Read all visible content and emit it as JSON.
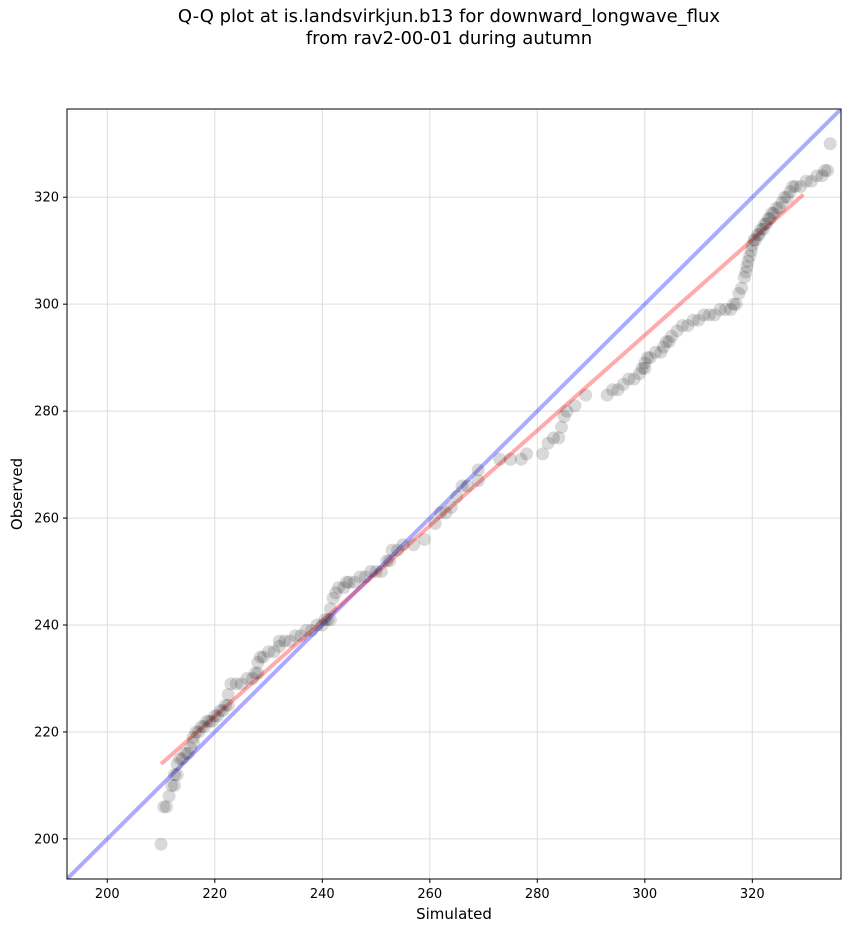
{
  "chart_data": {
    "type": "scatter",
    "title_line1": "Q-Q plot at is.landsvirkjun.b13 for downward_longwave_flux",
    "title_line2": "from rav2-00-01 during autumn",
    "xlabel": "Simulated",
    "ylabel": "Observed",
    "xlim": [
      192.5,
      336.5
    ],
    "ylim": [
      192.5,
      336.5
    ],
    "xticks": [
      200,
      220,
      240,
      260,
      280,
      300,
      320
    ],
    "yticks": [
      200,
      220,
      240,
      260,
      280,
      300,
      320
    ],
    "grid": true,
    "colors": {
      "points": "#000000",
      "identity_line": "#0000ff",
      "fit_line": "#ff0000",
      "grid": "#dddddd"
    },
    "identity_line": {
      "x": [
        192.5,
        336.5
      ],
      "y": [
        192.5,
        336.5
      ]
    },
    "fit_line": {
      "x": [
        210,
        329.5
      ],
      "y": [
        214,
        320.5
      ]
    },
    "points": [
      [
        210,
        199
      ],
      [
        210.5,
        206
      ],
      [
        211,
        206
      ],
      [
        211.5,
        208
      ],
      [
        212,
        210
      ],
      [
        212.5,
        210
      ],
      [
        212.5,
        212
      ],
      [
        213,
        212
      ],
      [
        213,
        214
      ],
      [
        213.5,
        215
      ],
      [
        214,
        215
      ],
      [
        214.5,
        216
      ],
      [
        215,
        216
      ],
      [
        215.5,
        217
      ],
      [
        216,
        218
      ],
      [
        216,
        219
      ],
      [
        216.5,
        220
      ],
      [
        217,
        220
      ],
      [
        217.5,
        221
      ],
      [
        218,
        221
      ],
      [
        218.5,
        222
      ],
      [
        219,
        222
      ],
      [
        219.5,
        222
      ],
      [
        220,
        223
      ],
      [
        220.5,
        223
      ],
      [
        221,
        224
      ],
      [
        221.5,
        224
      ],
      [
        222,
        225
      ],
      [
        222.5,
        225
      ],
      [
        222.5,
        227
      ],
      [
        223,
        229
      ],
      [
        224,
        229
      ],
      [
        225,
        229
      ],
      [
        226,
        230
      ],
      [
        227,
        230
      ],
      [
        227.5,
        231
      ],
      [
        228,
        231
      ],
      [
        228,
        233
      ],
      [
        228.5,
        234
      ],
      [
        229,
        234
      ],
      [
        230,
        235
      ],
      [
        231,
        235
      ],
      [
        232,
        236
      ],
      [
        232,
        237
      ],
      [
        233,
        237
      ],
      [
        234,
        237
      ],
      [
        235,
        238
      ],
      [
        236,
        238
      ],
      [
        237,
        239
      ],
      [
        238,
        239
      ],
      [
        239,
        240
      ],
      [
        240,
        240
      ],
      [
        240.5,
        241
      ],
      [
        241,
        241
      ],
      [
        241.5,
        241
      ],
      [
        241.5,
        243
      ],
      [
        242,
        245
      ],
      [
        242.5,
        246
      ],
      [
        243,
        247
      ],
      [
        244,
        247
      ],
      [
        244.5,
        248
      ],
      [
        245,
        248
      ],
      [
        246,
        248
      ],
      [
        247,
        249
      ],
      [
        248,
        249
      ],
      [
        249,
        250
      ],
      [
        250,
        250
      ],
      [
        251,
        250
      ],
      [
        252,
        252
      ],
      [
        252.5,
        252
      ],
      [
        253,
        254
      ],
      [
        254,
        254
      ],
      [
        255,
        255
      ],
      [
        257,
        255
      ],
      [
        259,
        256
      ],
      [
        261,
        259
      ],
      [
        262,
        261
      ],
      [
        263,
        261
      ],
      [
        264,
        262
      ],
      [
        265,
        264
      ],
      [
        266,
        266
      ],
      [
        267,
        266
      ],
      [
        269,
        267
      ],
      [
        269,
        269
      ],
      [
        273,
        271
      ],
      [
        275,
        271
      ],
      [
        277,
        271
      ],
      [
        278,
        272
      ],
      [
        281,
        272
      ],
      [
        282,
        274
      ],
      [
        283,
        275
      ],
      [
        284,
        275
      ],
      [
        284.5,
        277
      ],
      [
        285,
        279
      ],
      [
        285.5,
        280
      ],
      [
        287,
        281
      ],
      [
        289,
        283
      ],
      [
        293,
        283
      ],
      [
        294,
        284
      ],
      [
        295,
        284
      ],
      [
        296,
        285
      ],
      [
        297,
        286
      ],
      [
        298,
        286
      ],
      [
        299,
        287
      ],
      [
        299.5,
        288
      ],
      [
        300,
        288
      ],
      [
        300,
        289
      ],
      [
        300.5,
        290
      ],
      [
        301,
        290
      ],
      [
        302,
        291
      ],
      [
        303,
        291
      ],
      [
        303.5,
        292
      ],
      [
        304,
        293
      ],
      [
        304.5,
        293
      ],
      [
        305,
        294
      ],
      [
        306,
        295
      ],
      [
        307,
        296
      ],
      [
        308,
        296
      ],
      [
        309,
        297
      ],
      [
        310,
        297
      ],
      [
        311,
        298
      ],
      [
        312,
        298
      ],
      [
        313,
        298
      ],
      [
        314,
        299
      ],
      [
        315,
        299
      ],
      [
        316,
        299
      ],
      [
        316.5,
        300
      ],
      [
        317,
        300
      ],
      [
        317.5,
        302
      ],
      [
        318,
        303
      ],
      [
        318.5,
        305
      ],
      [
        318.8,
        306
      ],
      [
        319,
        307
      ],
      [
        319.2,
        308
      ],
      [
        319.5,
        309
      ],
      [
        319.8,
        310
      ],
      [
        320,
        311
      ],
      [
        320.3,
        312
      ],
      [
        320.6,
        312
      ],
      [
        321,
        313
      ],
      [
        321.3,
        313
      ],
      [
        321.6,
        314
      ],
      [
        322,
        314
      ],
      [
        322.3,
        315
      ],
      [
        322.6,
        315
      ],
      [
        323,
        316
      ],
      [
        323.3,
        316
      ],
      [
        323.6,
        317
      ],
      [
        324,
        317
      ],
      [
        324.5,
        318
      ],
      [
        325,
        318
      ],
      [
        325.5,
        319
      ],
      [
        326,
        320
      ],
      [
        326.5,
        320
      ],
      [
        327,
        321
      ],
      [
        327.5,
        322
      ],
      [
        328,
        322
      ],
      [
        329,
        322
      ],
      [
        330,
        323
      ],
      [
        331,
        323
      ],
      [
        332,
        324
      ],
      [
        333,
        324
      ],
      [
        333.5,
        325
      ],
      [
        334,
        325
      ],
      [
        334.5,
        330
      ]
    ]
  }
}
